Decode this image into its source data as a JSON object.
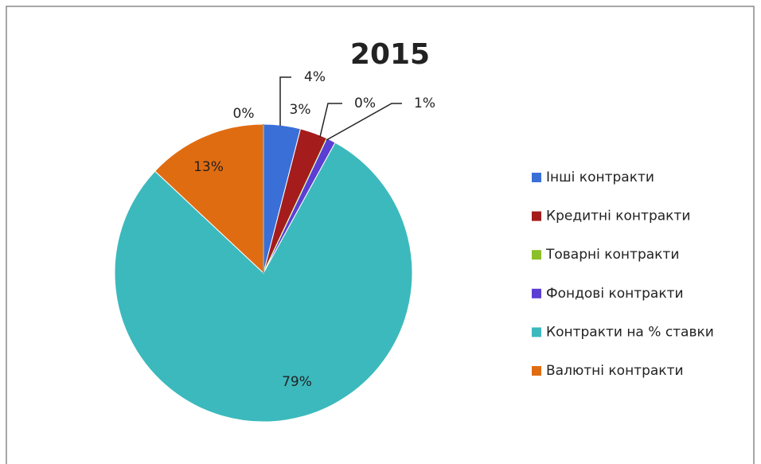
{
  "chart_data": {
    "type": "pie",
    "title": "2015",
    "categories": [
      "Інші контракти",
      "Кредитні контракти",
      "Товарні контракти",
      "Фондові контракти",
      "Контракти на % ставки",
      "Валютні контракти",
      null
    ],
    "values": [
      4,
      3,
      0,
      1,
      79,
      13,
      0
    ],
    "value_labels": [
      "4%",
      "3%",
      "0%",
      "1%",
      "79%",
      "13%",
      "0%"
    ],
    "colors": [
      "#3a6fd8",
      "#a41c1c",
      "#8cc02a",
      "#5b3fd2",
      "#3cb9bd",
      "#e06c12",
      "#9a9a9a"
    ],
    "legend": "right"
  }
}
